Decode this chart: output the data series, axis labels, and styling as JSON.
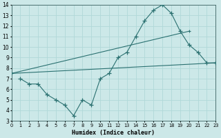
{
  "xlabel": "Humidex (Indice chaleur)",
  "xlim": [
    0,
    23
  ],
  "ylim": [
    3,
    14
  ],
  "xticks": [
    0,
    1,
    2,
    3,
    4,
    5,
    6,
    7,
    8,
    9,
    10,
    11,
    12,
    13,
    14,
    15,
    16,
    17,
    18,
    19,
    20,
    21,
    22,
    23
  ],
  "yticks": [
    3,
    4,
    5,
    6,
    7,
    8,
    9,
    10,
    11,
    12,
    13,
    14
  ],
  "bg_color": "#cce8e8",
  "line_color": "#2a7070",
  "grid_color": "#b0d8d8",
  "line1_x": [
    0,
    23
  ],
  "line1_y": [
    7.5,
    8.5
  ],
  "line2_x": [
    0,
    20
  ],
  "line2_y": [
    7.5,
    11.5
  ],
  "line3_x": [
    1,
    2,
    3,
    4,
    5,
    6,
    7,
    8,
    9,
    10,
    11,
    12,
    13,
    14,
    15,
    16,
    17,
    18,
    19,
    20,
    21,
    22,
    23
  ],
  "line3_y": [
    7.0,
    6.5,
    6.5,
    5.5,
    5.0,
    4.5,
    3.5,
    5.0,
    4.5,
    7.0,
    7.5,
    9.0,
    9.5,
    11.0,
    12.5,
    13.5,
    14.0,
    13.2,
    11.5,
    10.2,
    9.5,
    8.5,
    8.5
  ]
}
